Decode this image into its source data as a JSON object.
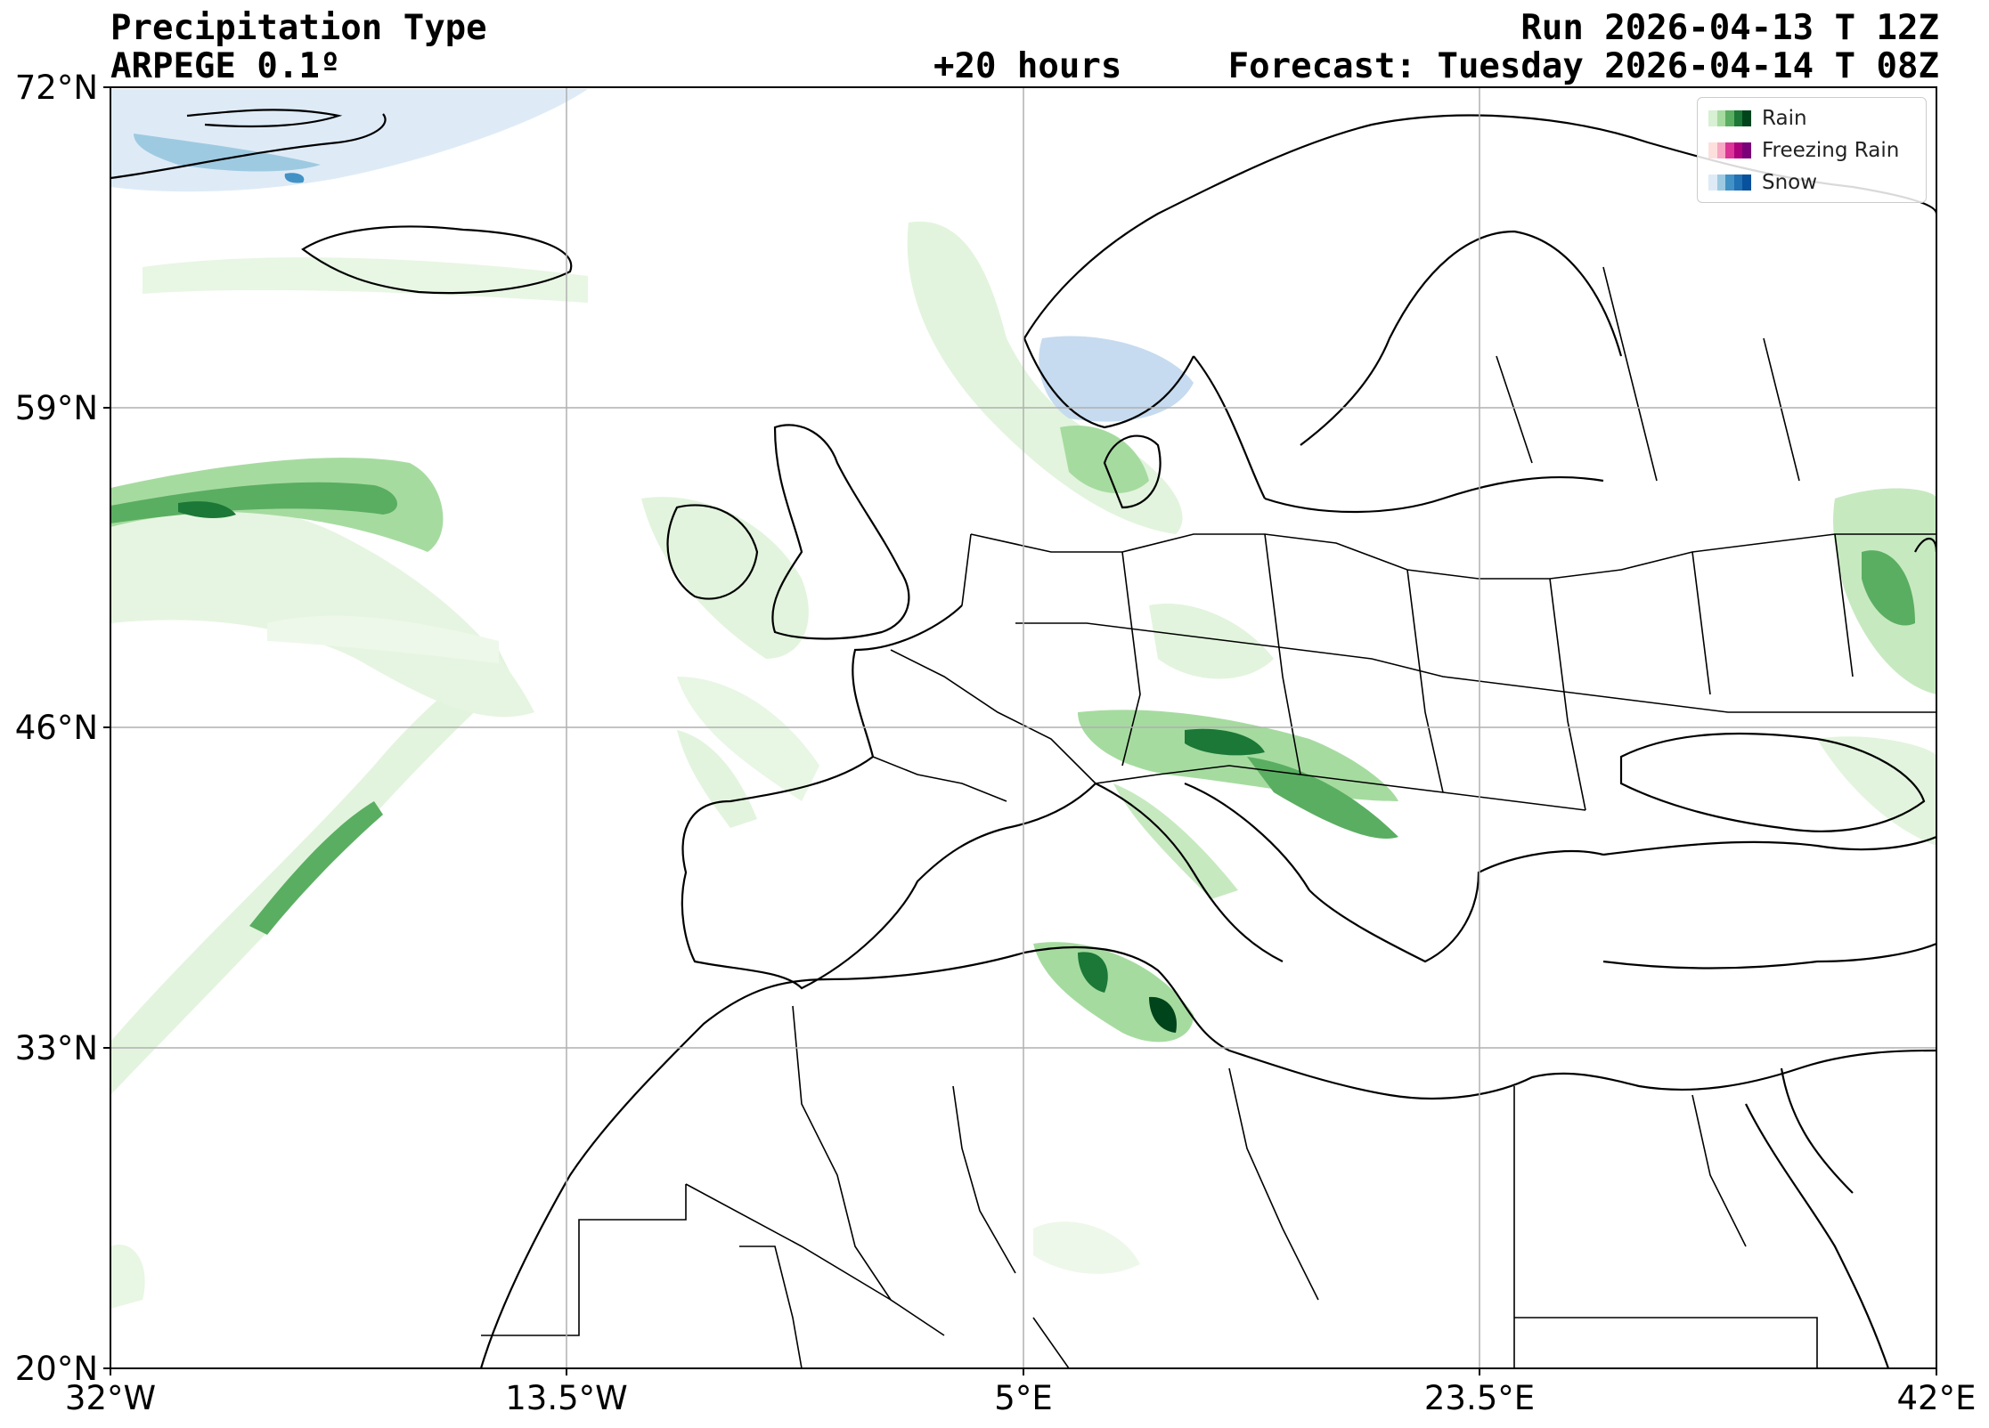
{
  "header": {
    "title": "Precipitation Type",
    "model": "ARPEGE 0.1º",
    "lead": "+20 hours",
    "run": "Run 2026-04-13 T 12Z",
    "forecast": "Forecast: Tuesday 2026-04-14 T 08Z"
  },
  "axes": {
    "lat_ticks": [
      "72°N",
      "59°N",
      "46°N",
      "33°N",
      "20°N"
    ],
    "lon_ticks": [
      "32°W",
      "13.5°W",
      "5°E",
      "23.5°E",
      "42°E"
    ],
    "lat_range": [
      20,
      72
    ],
    "lon_range": [
      -32,
      42
    ],
    "grid": true
  },
  "legend": {
    "placement": "top-right",
    "items": [
      {
        "label": "Rain",
        "colors": [
          "#d8f0d3",
          "#a6dba0",
          "#5aae61",
          "#1b7837",
          "#00441b"
        ]
      },
      {
        "label": "Freezing Rain",
        "colors": [
          "#fde0dd",
          "#f7a8c4",
          "#dd3497",
          "#ae017e",
          "#7a0177"
        ]
      },
      {
        "label": "Snow",
        "colors": [
          "#deebf7",
          "#9ecae1",
          "#4292c6",
          "#2171b5",
          "#08519c"
        ]
      }
    ]
  }
}
